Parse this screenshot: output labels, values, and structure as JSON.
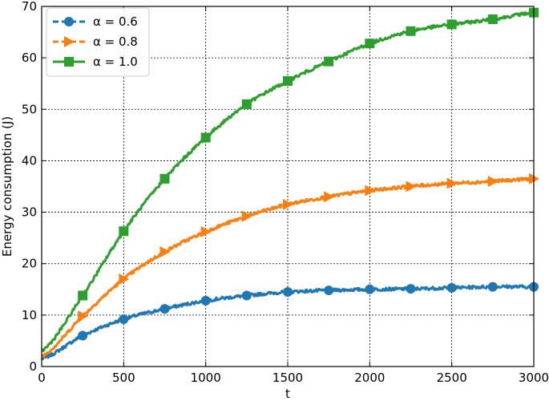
{
  "chart_data": {
    "type": "line",
    "title": "",
    "xlabel": "t",
    "ylabel": "Energy consumption (J)",
    "xlim": [
      0,
      3000
    ],
    "ylim": [
      0,
      70
    ],
    "xticks": [
      0,
      500,
      1000,
      1500,
      2000,
      2500,
      3000
    ],
    "yticks": [
      0,
      10,
      20,
      30,
      40,
      50,
      60,
      70
    ],
    "grid": true,
    "legend_position": "top-left",
    "series": [
      {
        "name": "α = 0.6",
        "color": "#1f77b4",
        "marker": "circle",
        "line_style": "dashed",
        "x": [
          0,
          250,
          500,
          750,
          1000,
          1250,
          1500,
          1750,
          2000,
          2250,
          2500,
          2750,
          3000
        ],
        "y": [
          1.5,
          6.0,
          9.2,
          11.2,
          12.8,
          13.8,
          14.5,
          14.8,
          15.0,
          15.1,
          15.3,
          15.5,
          15.5
        ]
      },
      {
        "name": "α = 0.8",
        "color": "#ff7f0e",
        "marker": "triangle-right",
        "line_style": "dashed",
        "x": [
          0,
          250,
          500,
          750,
          1000,
          1250,
          1500,
          1750,
          2000,
          2250,
          2500,
          2750,
          3000
        ],
        "y": [
          2.0,
          9.8,
          17.0,
          22.3,
          26.2,
          29.2,
          31.5,
          33.0,
          34.2,
          35.0,
          35.6,
          36.0,
          36.5
        ]
      },
      {
        "name": "α = 1.0",
        "color": "#2ca02c",
        "marker": "square",
        "line_style": "solid",
        "x": [
          0,
          250,
          500,
          750,
          1000,
          1250,
          1500,
          1750,
          2000,
          2250,
          2500,
          2750,
          3000
        ],
        "y": [
          3.0,
          13.8,
          26.3,
          36.5,
          44.5,
          51.0,
          55.5,
          59.3,
          62.8,
          65.2,
          66.5,
          67.5,
          68.8
        ]
      }
    ]
  }
}
